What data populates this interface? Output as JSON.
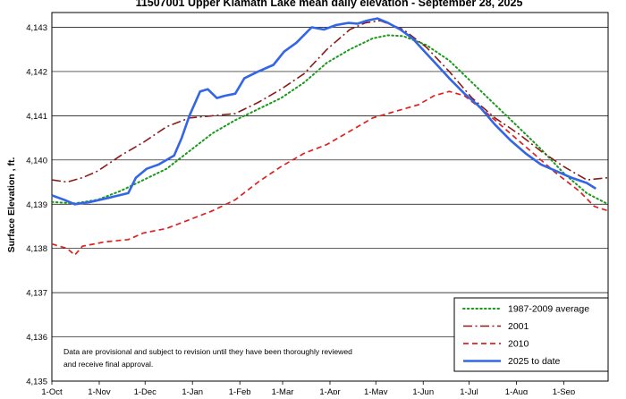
{
  "chart_data": {
    "type": "line",
    "title": "11507001 Upper Klamath Lake mean daily elevation  -  September 28, 2025",
    "ylabel": "Surface Elevation , ft.",
    "xlabel": "",
    "ylim": [
      4135,
      4143.2
    ],
    "yticks": [
      4135,
      4136,
      4137,
      4138,
      4139,
      4140,
      4141,
      4142,
      4143
    ],
    "ytick_labels": [
      "4,135",
      "4,136",
      "4,137",
      "4,138",
      "4,139",
      "4,140",
      "4,141",
      "4,142",
      "4,143"
    ],
    "x_domain_days": [
      0,
      364
    ],
    "xticks": [
      {
        "day": 0,
        "label": "1-Oct"
      },
      {
        "day": 31,
        "label": "1-Nov"
      },
      {
        "day": 61,
        "label": "1-Dec"
      },
      {
        "day": 92,
        "label": "1-Jan"
      },
      {
        "day": 123,
        "label": "1-Feb"
      },
      {
        "day": 151,
        "label": "1-Mar"
      },
      {
        "day": 182,
        "label": "1-Apr"
      },
      {
        "day": 212,
        "label": "1-May"
      },
      {
        "day": 243,
        "label": "1-Jun"
      },
      {
        "day": 273,
        "label": "1-Jul"
      },
      {
        "day": 304,
        "label": "1-Aug"
      },
      {
        "day": 335,
        "label": "1-Sep"
      }
    ],
    "grid": true,
    "legend_position": "bottom-right",
    "series": [
      {
        "name": "1987-2009 average",
        "color": "#1a9a1a",
        "dash": "dotted",
        "points": [
          [
            0,
            4139.05
          ],
          [
            15,
            4139.02
          ],
          [
            30,
            4139.1
          ],
          [
            45,
            4139.3
          ],
          [
            60,
            4139.55
          ],
          [
            75,
            4139.8
          ],
          [
            90,
            4140.2
          ],
          [
            105,
            4140.6
          ],
          [
            120,
            4140.9
          ],
          [
            135,
            4141.15
          ],
          [
            150,
            4141.4
          ],
          [
            165,
            4141.75
          ],
          [
            180,
            4142.2
          ],
          [
            195,
            4142.5
          ],
          [
            210,
            4142.75
          ],
          [
            220,
            4142.82
          ],
          [
            230,
            4142.8
          ],
          [
            245,
            4142.6
          ],
          [
            260,
            4142.25
          ],
          [
            275,
            4141.75
          ],
          [
            290,
            4141.25
          ],
          [
            305,
            4140.75
          ],
          [
            320,
            4140.25
          ],
          [
            335,
            4139.7
          ],
          [
            350,
            4139.25
          ],
          [
            364,
            4139.0
          ]
        ]
      },
      {
        "name": "2001",
        "color": "#8b1a1a",
        "dash": "dashdot",
        "points": [
          [
            0,
            4139.55
          ],
          [
            10,
            4139.5
          ],
          [
            20,
            4139.6
          ],
          [
            30,
            4139.75
          ],
          [
            45,
            4140.1
          ],
          [
            60,
            4140.4
          ],
          [
            75,
            4140.75
          ],
          [
            90,
            4140.95
          ],
          [
            105,
            4141.0
          ],
          [
            120,
            4141.05
          ],
          [
            135,
            4141.3
          ],
          [
            150,
            4141.6
          ],
          [
            165,
            4141.95
          ],
          [
            180,
            4142.5
          ],
          [
            195,
            4142.95
          ],
          [
            205,
            4143.1
          ],
          [
            215,
            4143.15
          ],
          [
            230,
            4142.95
          ],
          [
            245,
            4142.55
          ],
          [
            260,
            4142.0
          ],
          [
            275,
            4141.4
          ],
          [
            290,
            4140.95
          ],
          [
            305,
            4140.6
          ],
          [
            320,
            4140.2
          ],
          [
            335,
            4139.85
          ],
          [
            350,
            4139.55
          ],
          [
            364,
            4139.6
          ]
        ]
      },
      {
        "name": "2010",
        "color": "#e02020",
        "dash": "dashed",
        "points": [
          [
            0,
            4138.1
          ],
          [
            10,
            4138.0
          ],
          [
            15,
            4137.85
          ],
          [
            20,
            4138.05
          ],
          [
            35,
            4138.15
          ],
          [
            50,
            4138.2
          ],
          [
            60,
            4138.35
          ],
          [
            75,
            4138.45
          ],
          [
            90,
            4138.65
          ],
          [
            105,
            4138.85
          ],
          [
            120,
            4139.1
          ],
          [
            135,
            4139.5
          ],
          [
            150,
            4139.85
          ],
          [
            165,
            4140.15
          ],
          [
            180,
            4140.35
          ],
          [
            195,
            4140.65
          ],
          [
            210,
            4140.95
          ],
          [
            225,
            4141.1
          ],
          [
            240,
            4141.25
          ],
          [
            250,
            4141.45
          ],
          [
            260,
            4141.55
          ],
          [
            270,
            4141.45
          ],
          [
            285,
            4141.05
          ],
          [
            300,
            4140.6
          ],
          [
            315,
            4140.15
          ],
          [
            330,
            4139.7
          ],
          [
            345,
            4139.3
          ],
          [
            355,
            4138.95
          ],
          [
            364,
            4138.85
          ]
        ]
      },
      {
        "name": "2025 to date",
        "color": "#3366e6",
        "dash": "solid",
        "points": [
          [
            0,
            4139.2
          ],
          [
            8,
            4139.1
          ],
          [
            15,
            4139.0
          ],
          [
            25,
            4139.05
          ],
          [
            38,
            4139.15
          ],
          [
            50,
            4139.25
          ],
          [
            55,
            4139.6
          ],
          [
            62,
            4139.8
          ],
          [
            70,
            4139.9
          ],
          [
            80,
            4140.1
          ],
          [
            85,
            4140.5
          ],
          [
            90,
            4141.0
          ],
          [
            97,
            4141.55
          ],
          [
            102,
            4141.6
          ],
          [
            108,
            4141.4
          ],
          [
            113,
            4141.45
          ],
          [
            120,
            4141.5
          ],
          [
            126,
            4141.85
          ],
          [
            135,
            4142.0
          ],
          [
            145,
            4142.15
          ],
          [
            152,
            4142.45
          ],
          [
            160,
            4142.65
          ],
          [
            170,
            4143.0
          ],
          [
            178,
            4142.95
          ],
          [
            186,
            4143.05
          ],
          [
            194,
            4143.1
          ],
          [
            200,
            4143.08
          ],
          [
            206,
            4143.15
          ],
          [
            213,
            4143.2
          ],
          [
            220,
            4143.1
          ],
          [
            228,
            4142.95
          ],
          [
            236,
            4142.75
          ],
          [
            244,
            4142.45
          ],
          [
            252,
            4142.15
          ],
          [
            260,
            4141.85
          ],
          [
            270,
            4141.5
          ],
          [
            280,
            4141.2
          ],
          [
            290,
            4140.8
          ],
          [
            300,
            4140.45
          ],
          [
            310,
            4140.15
          ],
          [
            320,
            4139.9
          ],
          [
            330,
            4139.75
          ],
          [
            340,
            4139.6
          ],
          [
            350,
            4139.48
          ],
          [
            356,
            4139.35
          ]
        ]
      }
    ]
  },
  "note": {
    "line1": "Data are provisional and subject to revision until they have been thoroughly reviewed",
    "line2": "and receive final approval."
  }
}
